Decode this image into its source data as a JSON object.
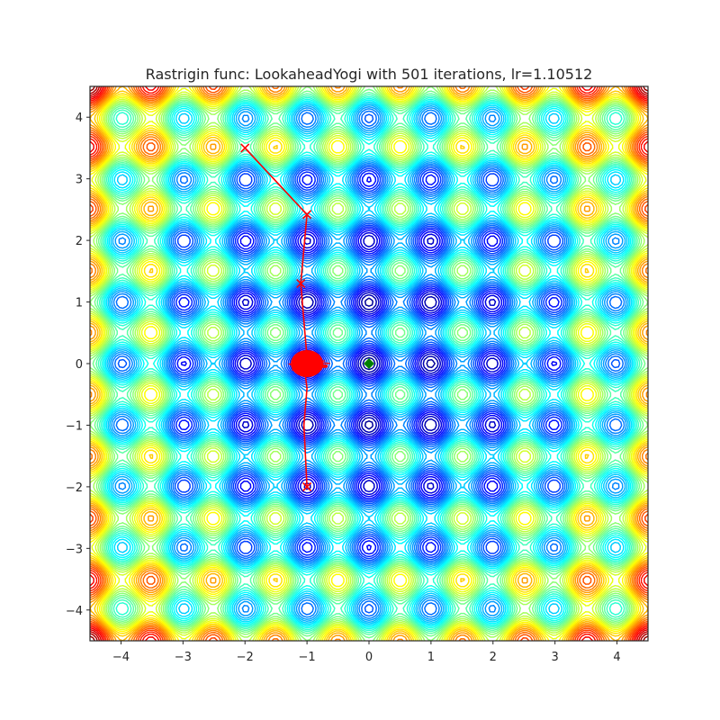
{
  "chart_data": {
    "type": "contour",
    "title": "Rastrigin func: LookaheadYogi with 501 iterations, lr=1.10512",
    "function": "rastrigin",
    "xlabel": "",
    "ylabel": "",
    "xlim": [
      -4.5,
      4.5
    ],
    "ylim": [
      -4.5,
      4.5
    ],
    "xticks": [
      -4,
      -3,
      -2,
      -1,
      0,
      1,
      2,
      3,
      4
    ],
    "yticks": [
      -4,
      -3,
      -2,
      -1,
      0,
      1,
      2,
      3,
      4
    ],
    "xtick_labels": [
      "−4",
      "−3",
      "−2",
      "−1",
      "0",
      "1",
      "2",
      "3",
      "4"
    ],
    "ytick_labels": [
      "−4",
      "−3",
      "−2",
      "−1",
      "0",
      "1",
      "2",
      "3",
      "4"
    ],
    "grid": false,
    "colormap": "jet",
    "path_color": "#ff0000",
    "minimum_color": "#008000",
    "global_minimum": {
      "x": 0,
      "y": 0
    },
    "optimizer_path": [
      {
        "x": -2.0,
        "y": 3.5
      },
      {
        "x": -1.0,
        "y": 2.42
      },
      {
        "x": -1.1,
        "y": 1.3
      },
      {
        "x": -1.0,
        "y": 0.1
      },
      {
        "x": -1.05,
        "y": 0.0
      },
      {
        "x": -1.0,
        "y": -0.4
      },
      {
        "x": -1.05,
        "y": -1.0
      },
      {
        "x": -1.0,
        "y": -2.0
      }
    ],
    "path_markers": [
      {
        "x": -2.0,
        "y": 3.5
      },
      {
        "x": -1.0,
        "y": 2.42
      },
      {
        "x": -1.1,
        "y": 1.3
      },
      {
        "x": -1.0,
        "y": -2.0
      }
    ],
    "cluster_center": {
      "x": -1.0,
      "y": 0.0
    },
    "cluster_spread": [
      0.4,
      0.25
    ]
  }
}
